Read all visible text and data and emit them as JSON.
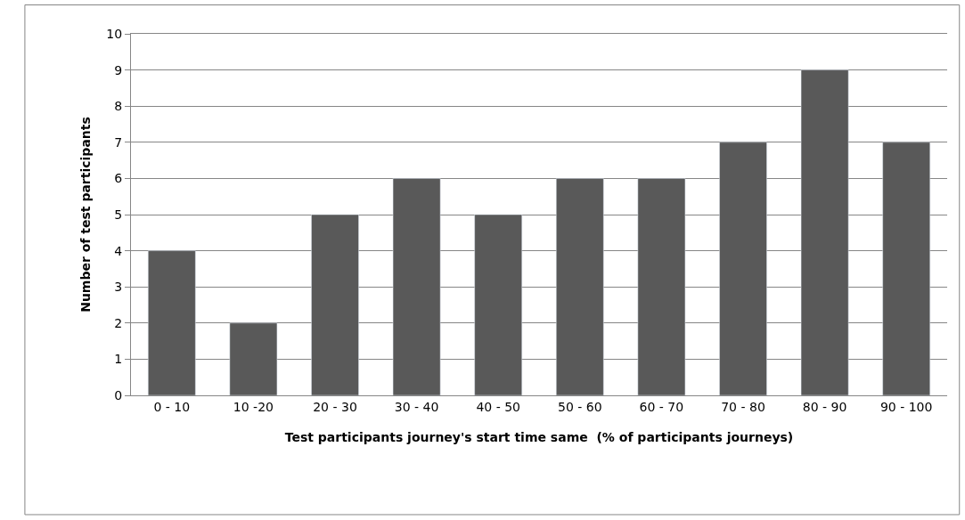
{
  "chart_data": {
    "type": "bar",
    "xlabel": "Test participants journey's start time same  (% of participants journeys)",
    "ylabel": "Number of test participants",
    "categories": [
      "0 - 10",
      "10 -20",
      "20 - 30",
      "30 - 40",
      "40 - 50",
      "50 - 60",
      "60 - 70",
      "70 - 80",
      "80 - 90",
      "90 - 100"
    ],
    "values": [
      4,
      2,
      5,
      6,
      5,
      6,
      6,
      7,
      9,
      7
    ],
    "color": "#595959",
    "ylim": [
      0,
      10
    ],
    "yticks": [
      0,
      1,
      2,
      3,
      4,
      5,
      6,
      7,
      8,
      9,
      10
    ],
    "grid": "y"
  }
}
